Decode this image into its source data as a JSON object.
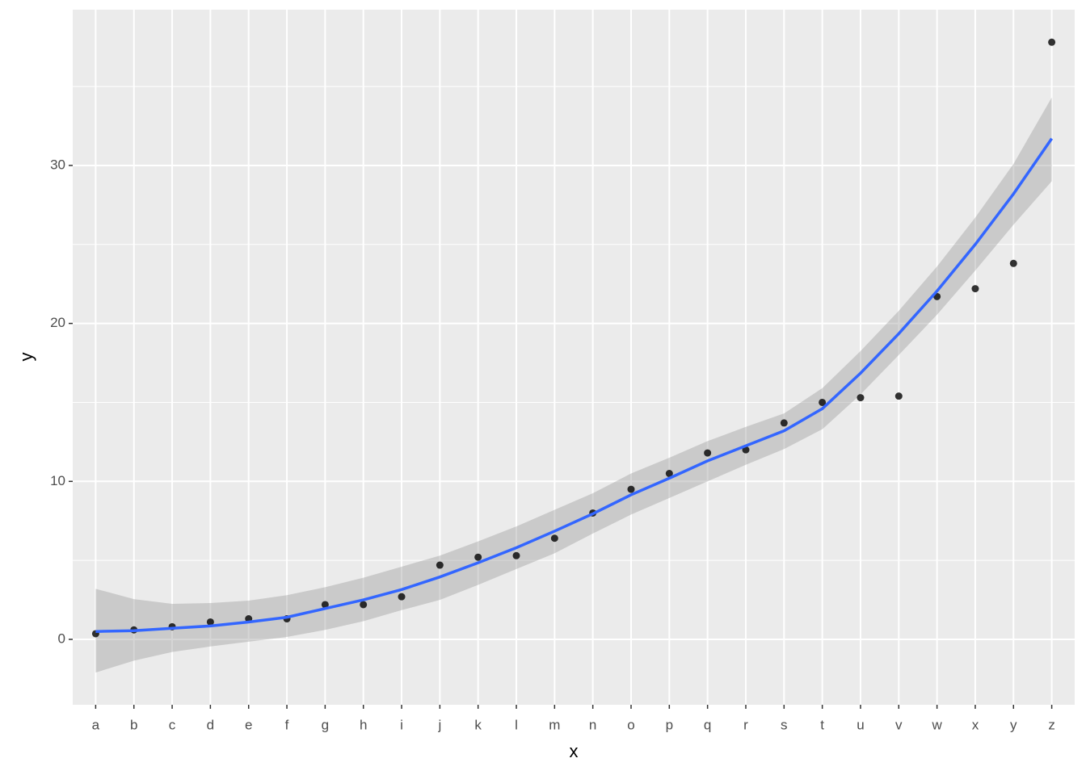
{
  "chart_data": {
    "type": "scatter_smooth",
    "xlabel": "x",
    "ylabel": "y",
    "categories": [
      "a",
      "b",
      "c",
      "d",
      "e",
      "f",
      "g",
      "h",
      "i",
      "j",
      "k",
      "l",
      "m",
      "n",
      "o",
      "p",
      "q",
      "r",
      "s",
      "t",
      "u",
      "v",
      "w",
      "x",
      "y",
      "z"
    ],
    "values": [
      0.36,
      0.6,
      0.8,
      1.1,
      1.3,
      1.3,
      2.2,
      2.2,
      2.7,
      4.7,
      5.2,
      5.3,
      6.4,
      8.0,
      9.5,
      10.5,
      11.8,
      12.0,
      13.7,
      15.0,
      15.3,
      15.4,
      21.7,
      22.2,
      23.8,
      37.8
    ],
    "color": "#000000",
    "smooth": {
      "color": "#3366FF",
      "band_color": "#999999",
      "values": [
        0.5,
        0.55,
        0.7,
        0.85,
        1.1,
        1.4,
        1.95,
        2.5,
        3.15,
        3.95,
        4.85,
        5.8,
        6.85,
        7.95,
        9.15,
        10.2,
        11.3,
        12.25,
        13.2,
        14.6,
        16.85,
        19.35,
        22.05,
        25.0,
        28.2,
        31.7
      ],
      "lower": [
        -2.1,
        -1.35,
        -0.8,
        -0.45,
        -0.15,
        0.15,
        0.6,
        1.15,
        1.85,
        2.5,
        3.45,
        4.45,
        5.45,
        6.7,
        7.9,
        8.95,
        10.0,
        11.05,
        12.05,
        13.3,
        15.5,
        18.0,
        20.55,
        23.35,
        26.25,
        29.0
      ],
      "upper": [
        3.2,
        2.55,
        2.25,
        2.3,
        2.45,
        2.8,
        3.3,
        3.9,
        4.6,
        5.3,
        6.2,
        7.15,
        8.2,
        9.25,
        10.5,
        11.5,
        12.55,
        13.45,
        14.3,
        15.9,
        18.25,
        20.8,
        23.6,
        26.7,
        30.1,
        34.3
      ]
    },
    "ylim": [
      -4.14,
      39.86
    ],
    "yticks": [
      0,
      10,
      20,
      30
    ],
    "yminor": [
      5,
      15,
      25,
      35
    ],
    "grid": true
  }
}
